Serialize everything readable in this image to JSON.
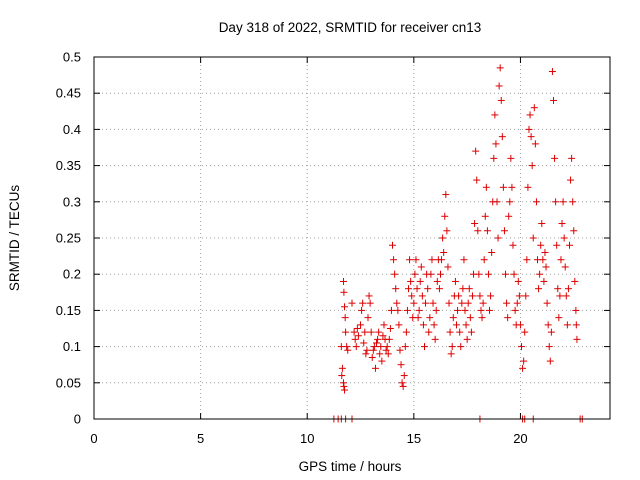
{
  "chart_data": {
    "type": "scatter",
    "title": "Day 318 of 2022, SRMTID for receiver cn13",
    "xlabel": "GPS time / hours",
    "ylabel": "SRMTID / TECUs",
    "xlim": [
      0,
      24.2
    ],
    "ylim": [
      0,
      0.5
    ],
    "xticks": [
      0,
      5,
      10,
      15,
      20
    ],
    "yticks": [
      0,
      0.05,
      0.1,
      0.15,
      0.2,
      0.25,
      0.3,
      0.35,
      0.4,
      0.45,
      0.5
    ],
    "ytick_labels": [
      "0",
      "0.05",
      "0.1",
      "0.15",
      "0.2",
      "0.25",
      "0.3",
      "0.35",
      "0.4",
      "0.45",
      "0.5"
    ],
    "xtick_labels": [
      "0",
      "5",
      "10",
      "15",
      "20"
    ],
    "grid": true,
    "marker": "+",
    "color": "#dd0000",
    "series": [
      {
        "name": "cn13",
        "points": [
          [
            11.25,
            0
          ],
          [
            11.45,
            0
          ],
          [
            11.6,
            0
          ],
          [
            11.8,
            0
          ],
          [
            12.1,
            0
          ],
          [
            18.1,
            0
          ],
          [
            20.1,
            0
          ],
          [
            20.2,
            0
          ],
          [
            20.6,
            0
          ],
          [
            22.8,
            0
          ],
          [
            22.9,
            0
          ],
          [
            11.7,
            0.19
          ],
          [
            11.72,
            0.175
          ],
          [
            11.75,
            0.155
          ],
          [
            11.78,
            0.14
          ],
          [
            11.8,
            0.12
          ],
          [
            11.6,
            0.1
          ],
          [
            11.65,
            0.07
          ],
          [
            11.62,
            0.06
          ],
          [
            11.7,
            0.05
          ],
          [
            11.72,
            0.045
          ],
          [
            11.75,
            0.04
          ],
          [
            11.85,
            0.1
          ],
          [
            11.9,
            0.095
          ],
          [
            12.1,
            0.16
          ],
          [
            12.2,
            0.12
          ],
          [
            12.25,
            0.11
          ],
          [
            12.3,
            0.1
          ],
          [
            12.35,
            0.125
          ],
          [
            12.4,
            0.115
          ],
          [
            12.5,
            0.13
          ],
          [
            12.55,
            0.15
          ],
          [
            12.6,
            0.16
          ],
          [
            12.65,
            0.105
          ],
          [
            12.7,
            0.12
          ],
          [
            12.75,
            0.09
          ],
          [
            12.8,
            0.095
          ],
          [
            12.85,
            0.14
          ],
          [
            12.9,
            0.17
          ],
          [
            12.95,
            0.16
          ],
          [
            13.0,
            0.12
          ],
          [
            13.05,
            0.085
          ],
          [
            13.1,
            0.095
          ],
          [
            13.15,
            0.1
          ],
          [
            13.2,
            0.07
          ],
          [
            13.25,
            0.105
          ],
          [
            13.3,
            0.11
          ],
          [
            13.35,
            0.12
          ],
          [
            13.4,
            0.09
          ],
          [
            13.45,
            0.1
          ],
          [
            13.5,
            0.08
          ],
          [
            13.55,
            0.115
          ],
          [
            13.6,
            0.13
          ],
          [
            13.65,
            0.11
          ],
          [
            13.7,
            0.095
          ],
          [
            13.75,
            0.1
          ],
          [
            13.8,
            0.09
          ],
          [
            13.85,
            0.11
          ],
          [
            13.9,
            0.125
          ],
          [
            13.95,
            0.15
          ],
          [
            14.0,
            0.24
          ],
          [
            14.05,
            0.22
          ],
          [
            14.1,
            0.2
          ],
          [
            14.15,
            0.18
          ],
          [
            14.2,
            0.16
          ],
          [
            14.25,
            0.15
          ],
          [
            14.3,
            0.13
          ],
          [
            14.35,
            0.095
          ],
          [
            14.4,
            0.075
          ],
          [
            14.45,
            0.05
          ],
          [
            14.5,
            0.045
          ],
          [
            14.55,
            0.06
          ],
          [
            14.6,
            0.1
          ],
          [
            14.65,
            0.12
          ],
          [
            14.7,
            0.15
          ],
          [
            14.75,
            0.18
          ],
          [
            14.8,
            0.22
          ],
          [
            14.85,
            0.19
          ],
          [
            14.9,
            0.17
          ],
          [
            14.95,
            0.14
          ],
          [
            15.0,
            0.16
          ],
          [
            15.05,
            0.2
          ],
          [
            15.1,
            0.22
          ],
          [
            15.15,
            0.18
          ],
          [
            15.2,
            0.14
          ],
          [
            15.25,
            0.15
          ],
          [
            15.3,
            0.19
          ],
          [
            15.35,
            0.21
          ],
          [
            15.4,
            0.17
          ],
          [
            15.45,
            0.13
          ],
          [
            15.5,
            0.1
          ],
          [
            15.55,
            0.16
          ],
          [
            15.6,
            0.2
          ],
          [
            15.65,
            0.18
          ],
          [
            15.7,
            0.12
          ],
          [
            15.75,
            0.14
          ],
          [
            15.8,
            0.2
          ],
          [
            15.85,
            0.22
          ],
          [
            15.9,
            0.16
          ],
          [
            15.95,
            0.13
          ],
          [
            16.0,
            0.11
          ],
          [
            16.05,
            0.15
          ],
          [
            16.1,
            0.19
          ],
          [
            16.15,
            0.22
          ],
          [
            16.2,
            0.18
          ],
          [
            16.25,
            0.2
          ],
          [
            16.3,
            0.22
          ],
          [
            16.35,
            0.25
          ],
          [
            16.4,
            0.23
          ],
          [
            16.45,
            0.28
          ],
          [
            16.5,
            0.31
          ],
          [
            16.55,
            0.26
          ],
          [
            16.6,
            0.21
          ],
          [
            16.65,
            0.16
          ],
          [
            16.7,
            0.12
          ],
          [
            16.75,
            0.09
          ],
          [
            16.8,
            0.1
          ],
          [
            16.85,
            0.14
          ],
          [
            16.9,
            0.17
          ],
          [
            16.95,
            0.19
          ],
          [
            17.0,
            0.13
          ],
          [
            17.05,
            0.15
          ],
          [
            17.1,
            0.17
          ],
          [
            17.15,
            0.12
          ],
          [
            17.2,
            0.1
          ],
          [
            17.25,
            0.16
          ],
          [
            17.3,
            0.18
          ],
          [
            17.35,
            0.22
          ],
          [
            17.4,
            0.15
          ],
          [
            17.45,
            0.13
          ],
          [
            17.5,
            0.11
          ],
          [
            17.55,
            0.16
          ],
          [
            17.6,
            0.18
          ],
          [
            17.65,
            0.14
          ],
          [
            17.7,
            0.12
          ],
          [
            17.75,
            0.17
          ],
          [
            17.8,
            0.2
          ],
          [
            17.85,
            0.27
          ],
          [
            17.9,
            0.37
          ],
          [
            17.95,
            0.33
          ],
          [
            18.0,
            0.26
          ],
          [
            18.05,
            0.2
          ],
          [
            18.1,
            0.17
          ],
          [
            18.15,
            0.15
          ],
          [
            18.2,
            0.14
          ],
          [
            18.25,
            0.16
          ],
          [
            18.3,
            0.22
          ],
          [
            18.35,
            0.28
          ],
          [
            18.4,
            0.32
          ],
          [
            18.45,
            0.26
          ],
          [
            18.5,
            0.2
          ],
          [
            18.55,
            0.15
          ],
          [
            18.6,
            0.17
          ],
          [
            18.65,
            0.23
          ],
          [
            18.7,
            0.3
          ],
          [
            18.75,
            0.36
          ],
          [
            18.8,
            0.42
          ],
          [
            18.85,
            0.38
          ],
          [
            18.9,
            0.3
          ],
          [
            18.95,
            0.25
          ],
          [
            19.0,
            0.46
          ],
          [
            19.05,
            0.485
          ],
          [
            19.1,
            0.44
          ],
          [
            19.15,
            0.39
          ],
          [
            19.2,
            0.32
          ],
          [
            19.25,
            0.26
          ],
          [
            19.3,
            0.2
          ],
          [
            19.35,
            0.16
          ],
          [
            19.4,
            0.14
          ],
          [
            19.45,
            0.28
          ],
          [
            19.5,
            0.3
          ],
          [
            19.55,
            0.36
          ],
          [
            19.6,
            0.32
          ],
          [
            19.65,
            0.24
          ],
          [
            19.7,
            0.2
          ],
          [
            19.75,
            0.15
          ],
          [
            19.8,
            0.13
          ],
          [
            19.85,
            0.16
          ],
          [
            19.9,
            0.19
          ],
          [
            19.95,
            0.17
          ],
          [
            20.0,
            0.13
          ],
          [
            20.05,
            0.1
          ],
          [
            20.1,
            0.07
          ],
          [
            20.15,
            0.08
          ],
          [
            20.2,
            0.12
          ],
          [
            20.25,
            0.17
          ],
          [
            20.3,
            0.22
          ],
          [
            20.35,
            0.32
          ],
          [
            20.4,
            0.4
          ],
          [
            20.45,
            0.42
          ],
          [
            20.5,
            0.39
          ],
          [
            20.55,
            0.35
          ],
          [
            20.6,
            0.25
          ],
          [
            20.65,
            0.43
          ],
          [
            20.7,
            0.38
          ],
          [
            20.75,
            0.3
          ],
          [
            20.8,
            0.22
          ],
          [
            20.85,
            0.18
          ],
          [
            20.9,
            0.2
          ],
          [
            20.95,
            0.24
          ],
          [
            21.0,
            0.27
          ],
          [
            21.05,
            0.22
          ],
          [
            21.1,
            0.19
          ],
          [
            21.15,
            0.23
          ],
          [
            21.2,
            0.21
          ],
          [
            21.25,
            0.16
          ],
          [
            21.3,
            0.13
          ],
          [
            21.35,
            0.1
          ],
          [
            21.4,
            0.08
          ],
          [
            21.45,
            0.12
          ],
          [
            21.5,
            0.48
          ],
          [
            21.55,
            0.44
          ],
          [
            21.6,
            0.36
          ],
          [
            21.65,
            0.3
          ],
          [
            21.7,
            0.24
          ],
          [
            21.75,
            0.18
          ],
          [
            21.8,
            0.14
          ],
          [
            21.85,
            0.17
          ],
          [
            21.9,
            0.22
          ],
          [
            21.95,
            0.27
          ],
          [
            22.0,
            0.3
          ],
          [
            22.05,
            0.25
          ],
          [
            22.1,
            0.21
          ],
          [
            22.15,
            0.17
          ],
          [
            22.2,
            0.13
          ],
          [
            22.25,
            0.18
          ],
          [
            22.3,
            0.24
          ],
          [
            22.35,
            0.33
          ],
          [
            22.4,
            0.36
          ],
          [
            22.45,
            0.3
          ],
          [
            22.5,
            0.26
          ],
          [
            22.55,
            0.19
          ],
          [
            22.6,
            0.15
          ],
          [
            22.62,
            0.13
          ],
          [
            22.65,
            0.11
          ]
        ]
      }
    ]
  }
}
